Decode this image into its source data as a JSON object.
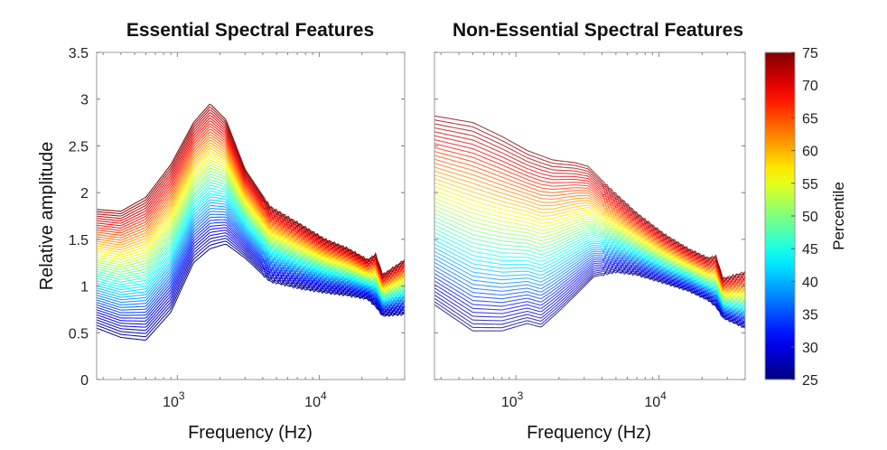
{
  "chart_data": [
    {
      "type": "line",
      "title": "Essential Spectral Features",
      "xlabel": "Frequency (Hz)",
      "ylabel": "Relative amplitude",
      "xscale": "log",
      "xlim": [
        270,
        40000
      ],
      "ylim": [
        0,
        3.5
      ],
      "yticks": [
        "0",
        "0.5",
        "1",
        "1.5",
        "2",
        "2.5",
        "3",
        "3.5"
      ],
      "xticks": [
        {
          "base": "10",
          "exp": "3",
          "value": 1000
        },
        {
          "base": "10",
          "exp": "4",
          "value": 10000
        }
      ],
      "grid": false,
      "series_family": {
        "description_of_percentile_range": [
          25,
          75
        ],
        "envelope_top": {
          "x": [
            270,
            400,
            600,
            900,
            1300,
            1700,
            2200,
            3000,
            4500,
            7000,
            11000,
            16000,
            22000,
            25000,
            28000,
            40000
          ],
          "y": [
            1.82,
            1.8,
            1.95,
            2.3,
            2.75,
            2.95,
            2.78,
            2.25,
            1.85,
            1.68,
            1.5,
            1.4,
            1.28,
            1.34,
            1.12,
            1.28
          ]
        },
        "envelope_bottom": {
          "x": [
            270,
            400,
            600,
            900,
            1300,
            1700,
            2200,
            3000,
            4500,
            7000,
            11000,
            16000,
            22000,
            25000,
            28000,
            40000
          ],
          "y": [
            0.55,
            0.45,
            0.42,
            0.72,
            1.25,
            1.4,
            1.45,
            1.3,
            1.05,
            0.98,
            0.93,
            0.9,
            0.86,
            0.78,
            0.68,
            0.7
          ]
        },
        "line_count": 51
      }
    },
    {
      "type": "line",
      "title": "Non-Essential Spectral Features",
      "xlabel": "Frequency (Hz)",
      "ylabel": "",
      "xscale": "log",
      "xlim": [
        270,
        40000
      ],
      "ylim": [
        0,
        3.5
      ],
      "xticks": [
        {
          "base": "10",
          "exp": "3",
          "value": 1000
        },
        {
          "base": "10",
          "exp": "4",
          "value": 10000
        }
      ],
      "grid": false,
      "series_family": {
        "description_of_percentile_range": [
          25,
          75
        ],
        "envelope_top": {
          "x": [
            270,
            500,
            800,
            1200,
            1800,
            2600,
            3200,
            4500,
            7000,
            11000,
            16000,
            22000,
            25000,
            28000,
            40000
          ],
          "y": [
            2.82,
            2.75,
            2.6,
            2.45,
            2.35,
            2.32,
            2.28,
            2.05,
            1.78,
            1.55,
            1.4,
            1.3,
            1.32,
            1.08,
            1.15
          ]
        },
        "envelope_bottom": {
          "x": [
            270,
            500,
            800,
            1200,
            1500,
            1900,
            2600,
            3500,
            5000,
            7000,
            11000,
            16000,
            22000,
            25000,
            28000,
            40000
          ],
          "y": [
            0.8,
            0.52,
            0.52,
            0.6,
            0.56,
            0.7,
            0.9,
            1.1,
            1.15,
            1.12,
            1.03,
            0.95,
            0.85,
            0.78,
            0.66,
            0.55
          ]
        },
        "line_count": 51
      }
    }
  ],
  "colorbar": {
    "label": "Percentile",
    "min": 25,
    "max": 75,
    "ticks": [
      "25",
      "30",
      "35",
      "40",
      "45",
      "50",
      "55",
      "60",
      "65",
      "70",
      "75"
    ],
    "colormap": "jet"
  }
}
